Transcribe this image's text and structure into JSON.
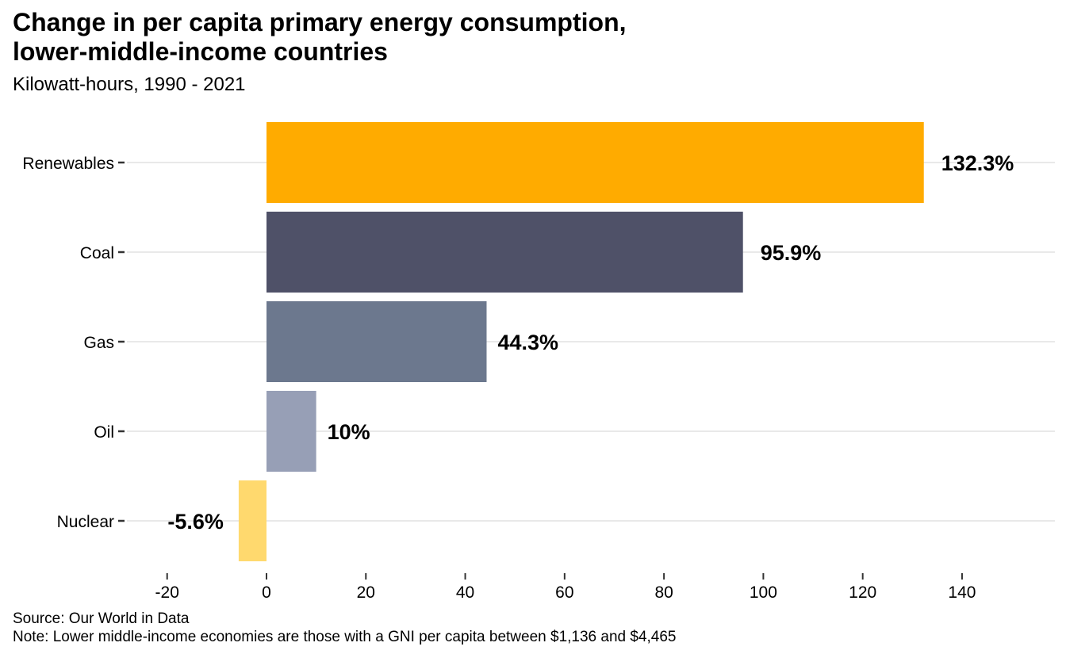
{
  "chart_data": {
    "type": "bar",
    "orientation": "horizontal",
    "title": "Change in per capita primary energy consumption, lower-middle-income countries",
    "title_lines": [
      "Change in per capita primary energy consumption,",
      "lower-middle-income countries"
    ],
    "subtitle": "Kilowatt-hours, 1990 - 2021",
    "xlabel": "",
    "ylabel": "",
    "categories": [
      "Renewables",
      "Coal",
      "Gas",
      "Oil",
      "Nuclear"
    ],
    "values": [
      132.3,
      95.9,
      44.3,
      10,
      -5.6
    ],
    "value_labels": [
      "132.3%",
      "95.9%",
      "44.3%",
      "10%",
      "-5.6%"
    ],
    "colors": [
      "#FFAB00",
      "#4F5168",
      "#6C788E",
      "#979FB6",
      "#FFD96E"
    ],
    "xlim": [
      -26,
      158
    ],
    "xticks": [
      -20,
      0,
      20,
      40,
      60,
      80,
      100,
      120,
      140
    ],
    "xtick_labels": [
      "-20",
      "0",
      "20",
      "40",
      "60",
      "80",
      "100",
      "120",
      "140"
    ],
    "grid": "horizontal at each category",
    "legend": "none"
  },
  "captions": {
    "source": "Source: Our World in Data",
    "note": "Note: Lower middle-income economies are those with a GNI per capita between $1,136 and $4,465"
  }
}
